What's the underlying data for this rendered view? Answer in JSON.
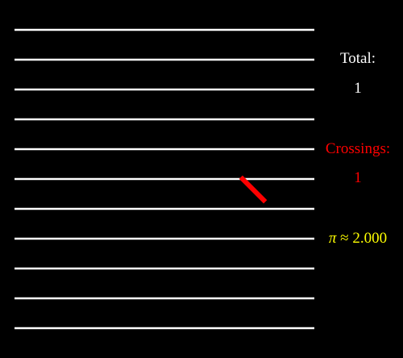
{
  "simulation": {
    "line_count": 11,
    "needles": [
      {
        "angle_deg": 45,
        "crosses": true
      }
    ]
  },
  "stats": {
    "total_label": "Total:",
    "total_value": "1",
    "crossings_label": "Crossings:",
    "crossings_value": "1",
    "pi_symbol": "π",
    "pi_approx": "≈",
    "pi_value": "2.000"
  },
  "colors": {
    "background": "#000000",
    "lines": "#ffffff",
    "needle": "#ff0000",
    "total_text": "#ffffff",
    "crossings_text": "#ff0000",
    "pi_text": "#ffff00"
  }
}
